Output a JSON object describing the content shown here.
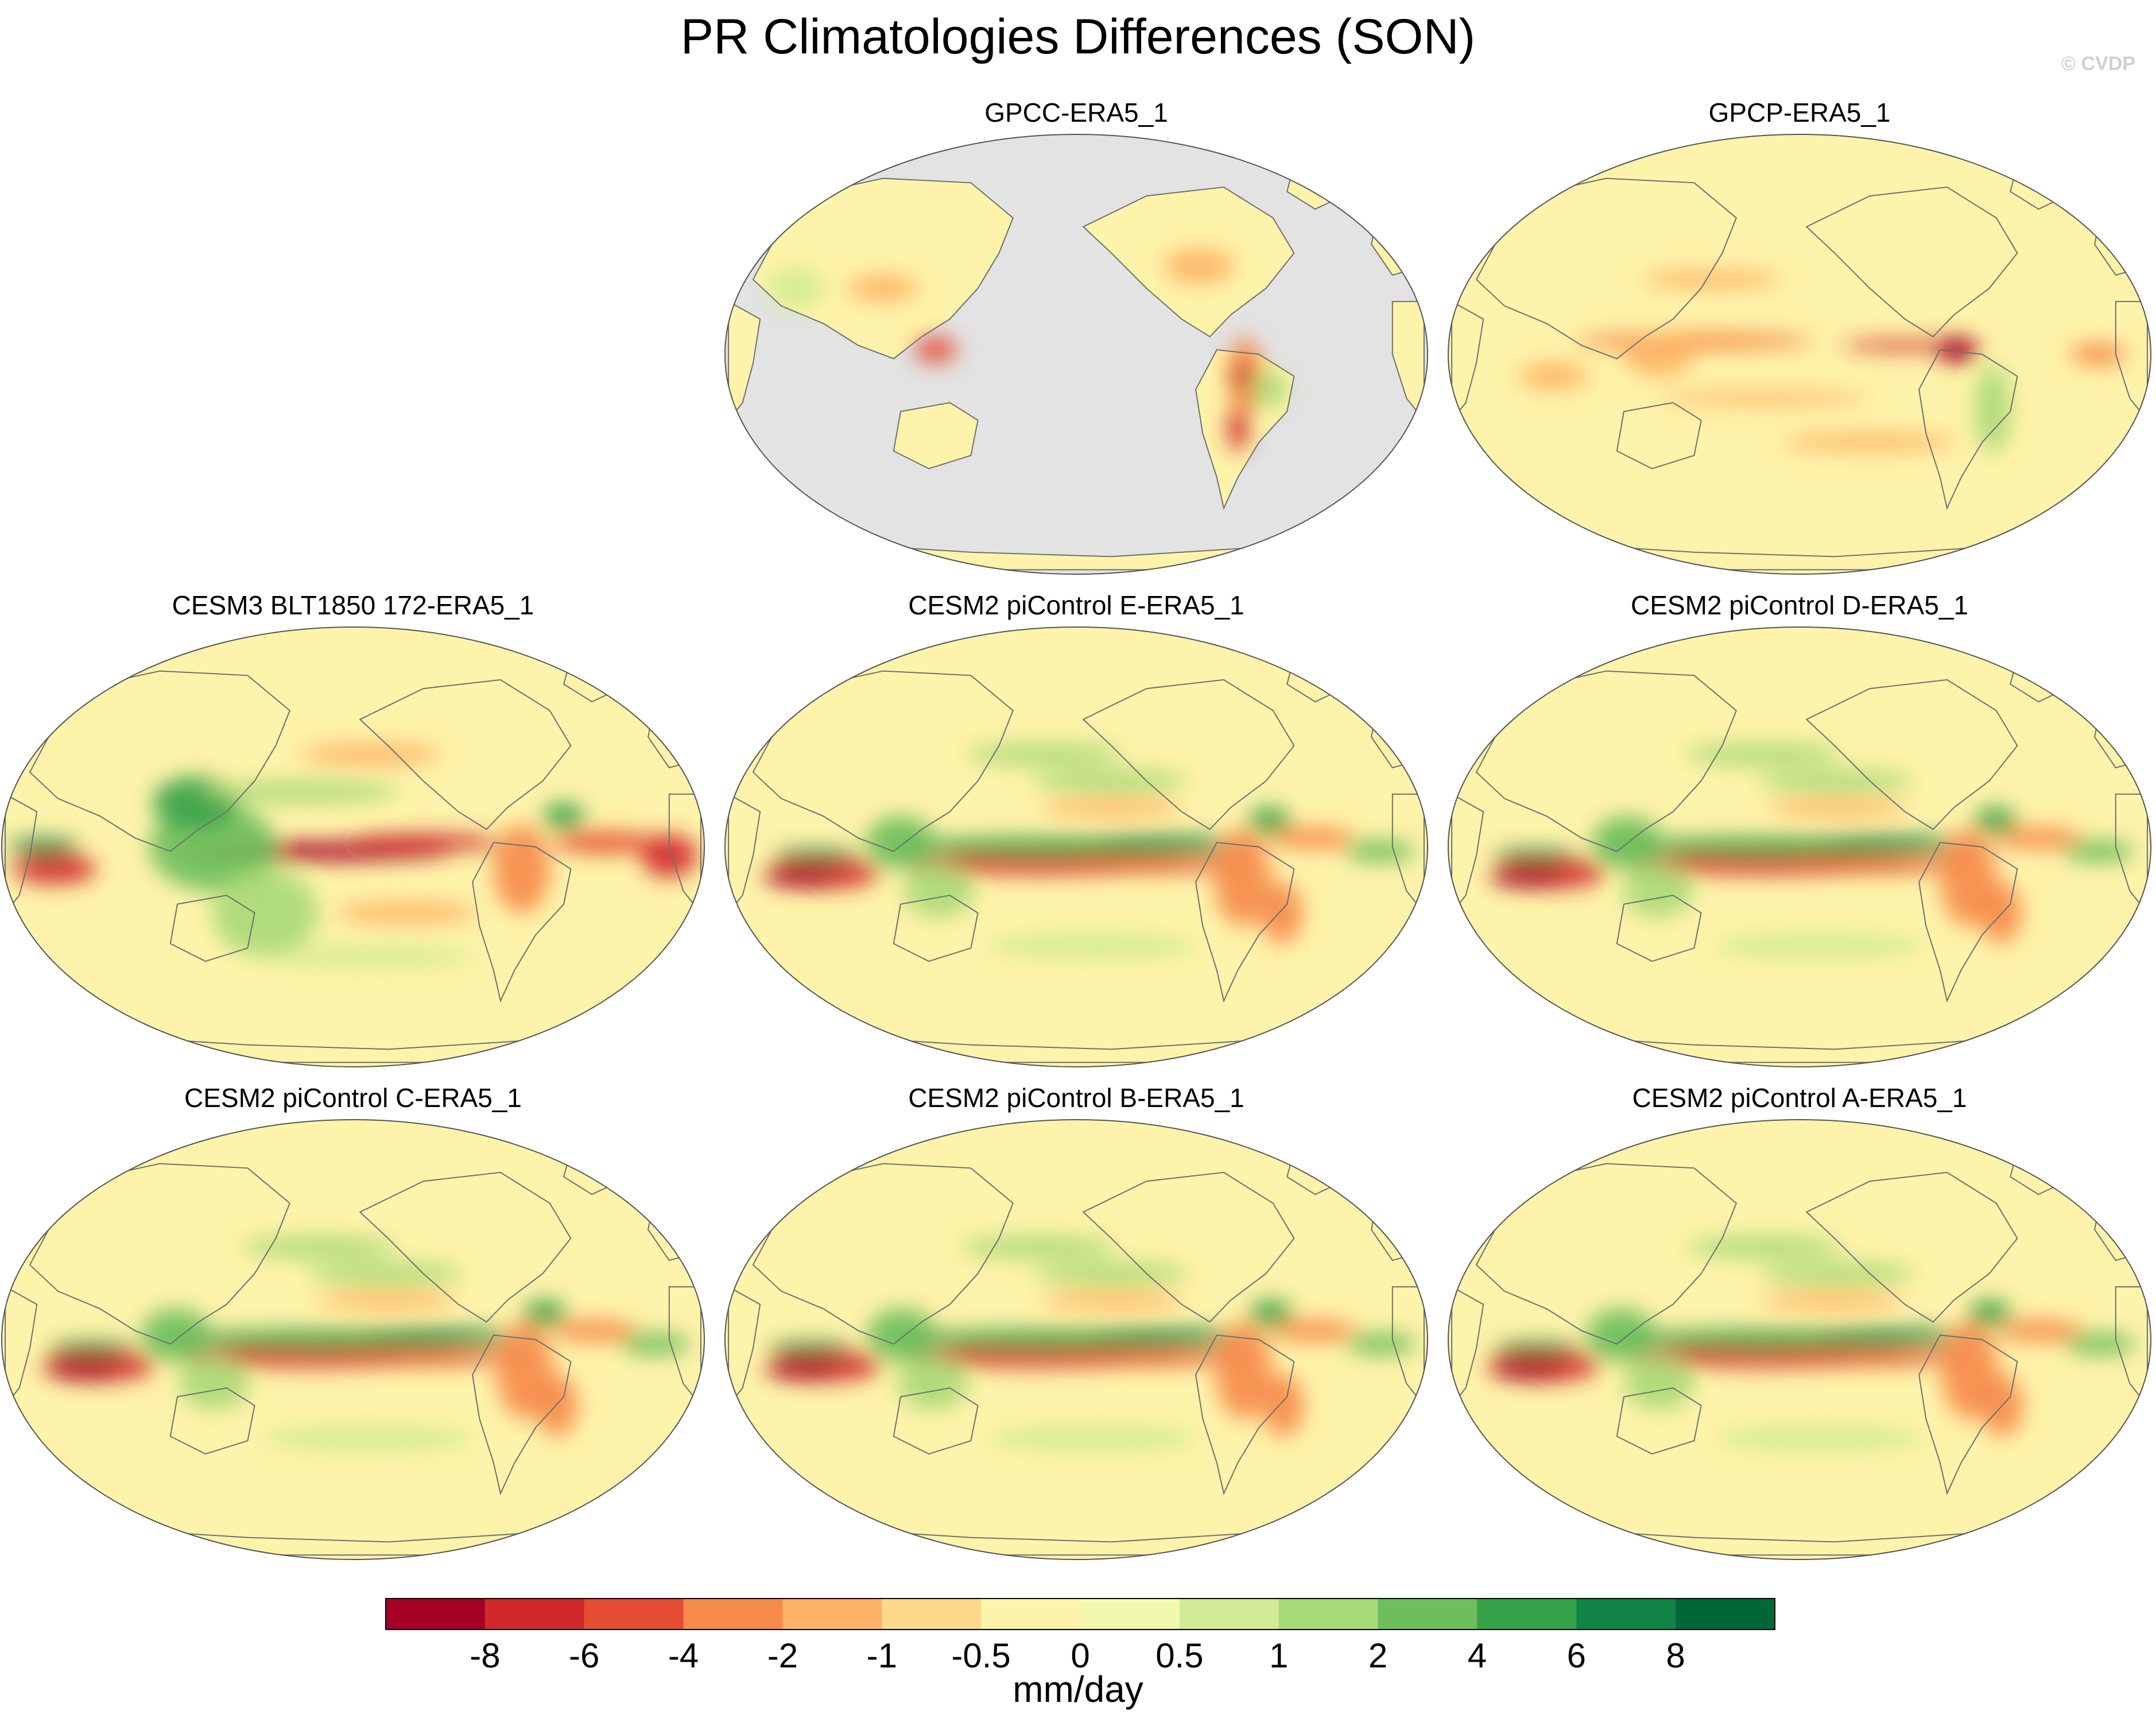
{
  "title": "PR Climatologies Differences (SON)",
  "credit": "© CVDP",
  "chart_data": {
    "type": "heatmap",
    "title": "PR Climatologies Differences (SON)",
    "projection": "Robinson (Pacific-centered)",
    "units": "mm/day",
    "colorbar": {
      "levels": [
        -8,
        -6,
        -4,
        -2,
        -1,
        -0.5,
        0,
        0.5,
        1,
        2,
        4,
        6,
        8
      ],
      "tick_labels": [
        "-8",
        "-6",
        "-4",
        "-2",
        "-1",
        "-0.5",
        "0",
        "0.5",
        "1",
        "2",
        "4",
        "6",
        "8"
      ],
      "colors": [
        "#a50026",
        "#d1292b",
        "#e44d32",
        "#f68a4b",
        "#fdb265",
        "#fed98b",
        "#fef3aa",
        "#f2f9ae",
        "#d3eb95",
        "#a8d977",
        "#6cbf5b",
        "#35a148",
        "#0f8446",
        "#006837"
      ],
      "units": "mm/day"
    },
    "panels": [
      {
        "name": "GPCC-ERA5_1",
        "land_only": true
      },
      {
        "name": "GPCP-ERA5_1",
        "land_only": false
      },
      {
        "name": "CESM3 BLT1850 172-ERA5_1",
        "land_only": false
      },
      {
        "name": "CESM2 piControl E-ERA5_1",
        "land_only": false
      },
      {
        "name": "CESM2 piControl D-ERA5_1",
        "land_only": false
      },
      {
        "name": "CESM2 piControl C-ERA5_1",
        "land_only": false
      },
      {
        "name": "CESM2 piControl B-ERA5_1",
        "land_only": false
      },
      {
        "name": "CESM2 piControl A-ERA5_1",
        "land_only": false
      }
    ]
  },
  "colors": {
    "ocean_mask": "#e3e3e3",
    "land_base": "#fef3aa",
    "coastline": "#707070"
  }
}
